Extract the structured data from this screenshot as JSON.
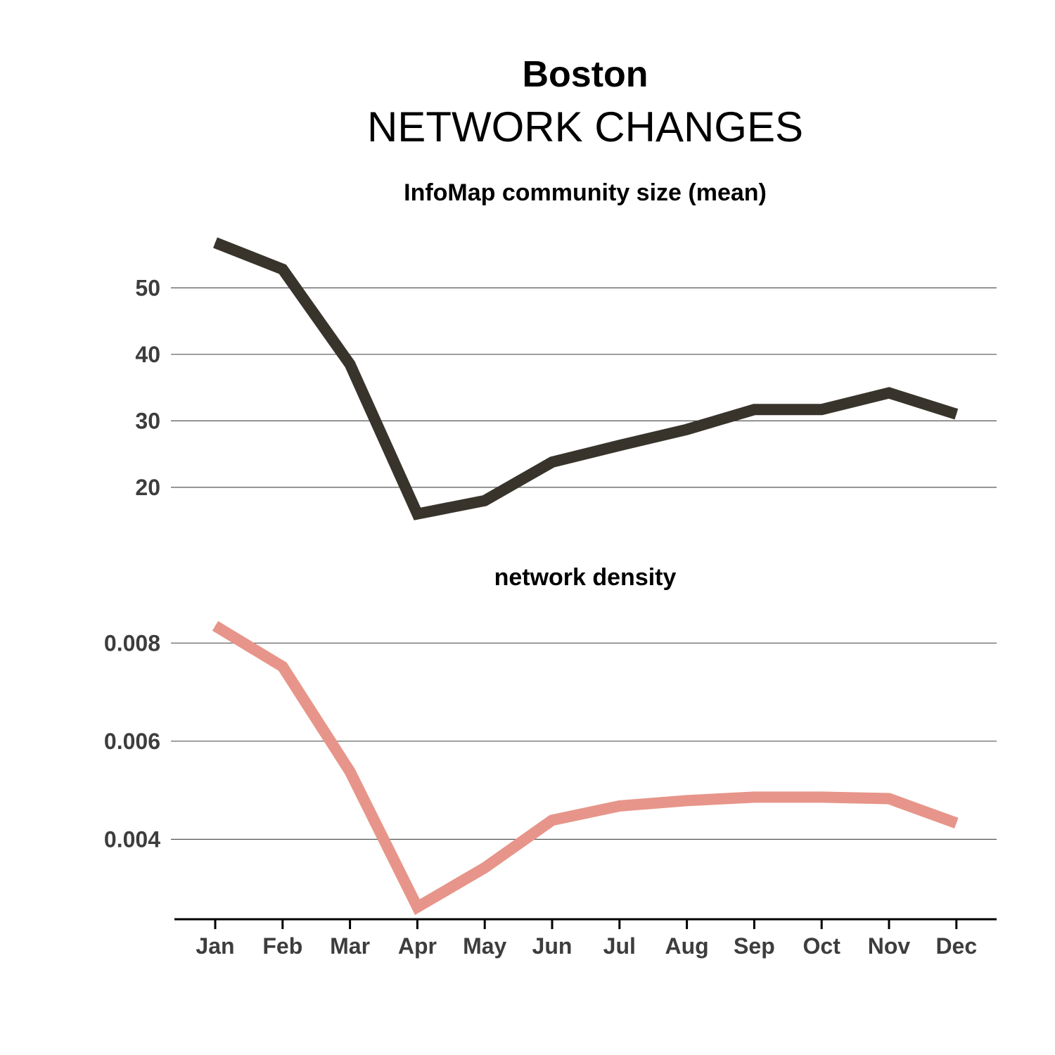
{
  "header": {
    "title": "Boston",
    "subtitle": "NETWORK CHANGES"
  },
  "chart_data": [
    {
      "type": "line",
      "title": "InfoMap community size (mean)",
      "x": [
        "Jan",
        "Feb",
        "Mar",
        "Apr",
        "May",
        "Jun",
        "Jul",
        "Aug",
        "Sep",
        "Oct",
        "Nov",
        "Dec"
      ],
      "series": [
        {
          "values": [
            56.8,
            52.8,
            38.5,
            16.0,
            18.0,
            23.8,
            26.3,
            28.7,
            31.7,
            31.7,
            34.2,
            31.0
          ],
          "color": "#38342c"
        }
      ],
      "yticks": [
        20,
        30,
        40,
        50
      ],
      "ytick_labels": [
        "20",
        "30",
        "40",
        "50"
      ],
      "ylim": [
        12.9,
        60.5
      ],
      "grid": true,
      "xlabel": "",
      "ylabel": ""
    },
    {
      "type": "line",
      "title": "network density",
      "x": [
        "Jan",
        "Feb",
        "Mar",
        "Apr",
        "May",
        "Jun",
        "Jul",
        "Aug",
        "Sep",
        "Oct",
        "Nov",
        "Dec"
      ],
      "series": [
        {
          "values": [
            0.00835,
            0.00752,
            0.00538,
            0.00262,
            0.00342,
            0.00439,
            0.00468,
            0.00479,
            0.00486,
            0.00486,
            0.00483,
            0.00433
          ],
          "color": "#e7958a"
        }
      ],
      "yticks": [
        0.004,
        0.006,
        0.008
      ],
      "ytick_labels": [
        "0.004",
        "0.006",
        "0.008"
      ],
      "ylim": [
        0.0024,
        0.00885
      ],
      "grid": true,
      "xlabel": "",
      "ylabel": ""
    }
  ]
}
